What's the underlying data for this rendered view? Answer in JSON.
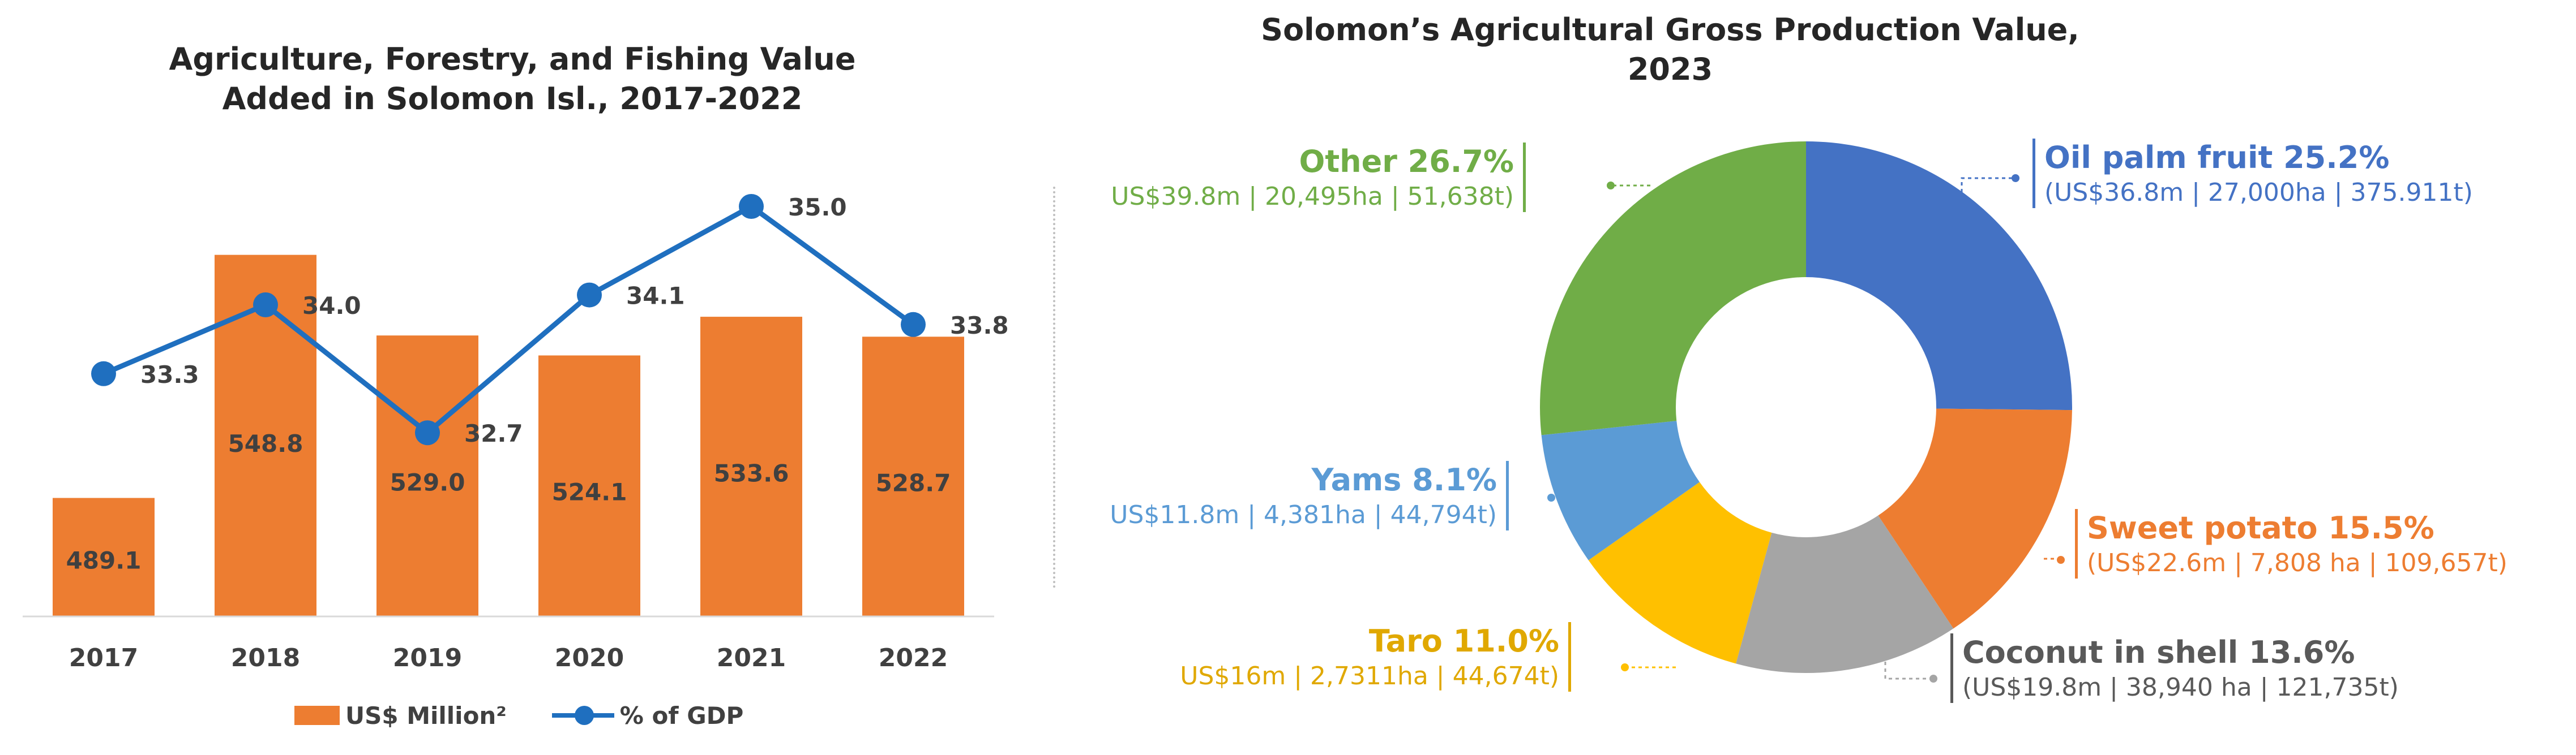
{
  "left_chart": {
    "title_line1": "Agriculture, Forestry, and Fishing Value",
    "title_line2": "Added in Solomon Isl., 2017-2022",
    "legend": {
      "bar_label": "US$ Million²",
      "line_label": "% of GDP"
    },
    "colors": {
      "bar": "#ED7D31",
      "line": "#1F6FBF"
    }
  },
  "right_chart": {
    "title_line1": "Solomon’s Agricultural Gross Production Value,",
    "title_line2": "2023",
    "labels": [
      {
        "head": "Oil palm fruit 25.2%",
        "sub": "(US$36.8m | 27,000ha | 375.911t)",
        "color": "#4472C4"
      },
      {
        "head": "Sweet potato 15.5%",
        "sub": "(US$22.6m | 7,808 ha | 109,657t)",
        "color": "#ED7D31"
      },
      {
        "head": "Coconut in shell 13.6%",
        "sub": "(US$19.8m | 38,940 ha | 121,735t)",
        "color": "#595959"
      },
      {
        "head": "Taro 11.0%",
        "sub": "US$16m | 2,7311ha | 44,674t)",
        "color": "#E0A800"
      },
      {
        "head": "Yams 8.1%",
        "sub": "US$11.8m | 4,381ha | 44,794t)",
        "color": "#5B9BD5"
      },
      {
        "head": "Other 26.7%",
        "sub": "US$39.8m | 20,495ha | 51,638t)",
        "color": "#70AD47"
      }
    ]
  },
  "chart_data": [
    {
      "type": "bar",
      "title": "Agriculture, Forestry, and Fishing Value Added in Solomon Isl., 2017-2022",
      "categories": [
        "2017",
        "2018",
        "2019",
        "2020",
        "2021",
        "2022"
      ],
      "series": [
        {
          "name": "US$ Million²",
          "type": "bar",
          "values": [
            489.1,
            548.8,
            529.0,
            524.1,
            533.6,
            528.7
          ]
        },
        {
          "name": "% of GDP",
          "type": "line",
          "values": [
            33.3,
            34.0,
            32.7,
            34.1,
            35.0,
            33.8
          ]
        }
      ],
      "legend": "bottom",
      "grid": false
    },
    {
      "type": "pie",
      "variant": "donut",
      "title": "Solomon’s Agricultural Gross Production Value, 2023",
      "categories": [
        "Oil palm fruit",
        "Sweet potato",
        "Coconut in shell",
        "Taro",
        "Yams",
        "Other"
      ],
      "values": [
        25.2,
        15.5,
        13.6,
        11.0,
        8.1,
        26.7
      ],
      "colors": [
        "#4472C4",
        "#ED7D31",
        "#A5A5A5",
        "#FFC000",
        "#5B9BD5",
        "#70AD47"
      ]
    }
  ]
}
